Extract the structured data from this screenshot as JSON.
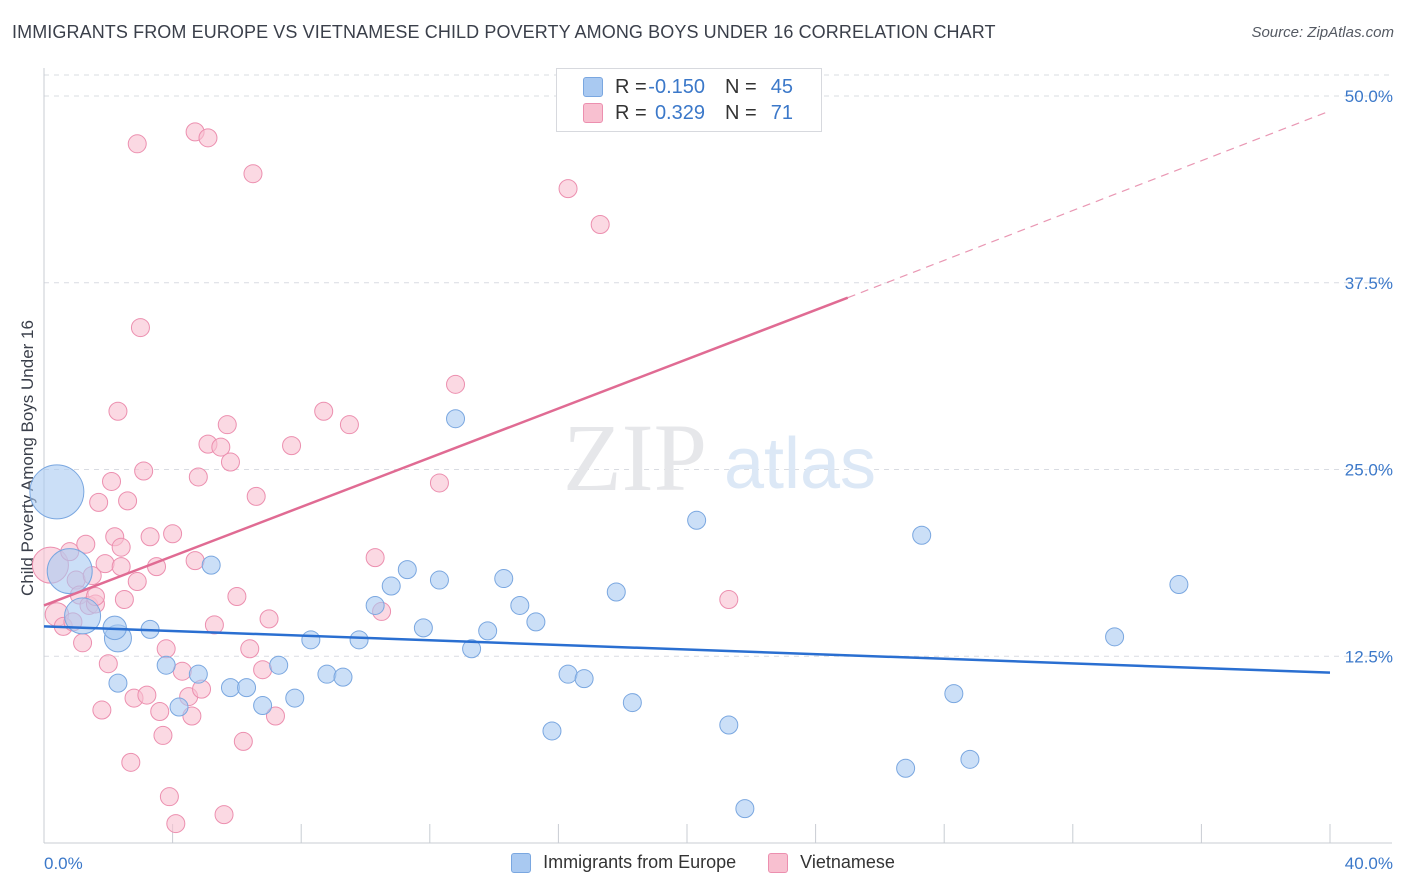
{
  "title": "IMMIGRANTS FROM EUROPE VS VIETNAMESE CHILD POVERTY AMONG BOYS UNDER 16 CORRELATION CHART",
  "source": "Source: ZipAtlas.com",
  "watermark": {
    "zip": "ZIP",
    "atlas": "atlas"
  },
  "legend": {
    "series": [
      {
        "r_label": "R =",
        "r_value": "-0.150",
        "n_label": "N =",
        "n_value": "45",
        "color": "#a9c9f1",
        "border": "#7aa7e0"
      },
      {
        "r_label": "R =",
        "r_value": "0.329",
        "n_label": "N =",
        "n_value": "71",
        "color": "#f8c0d0",
        "border": "#ec8faf"
      }
    ],
    "bottom": [
      "Immigrants from Europe",
      "Vietnamese"
    ]
  },
  "colors": {
    "blue_fill": "#a9c9f1",
    "blue_stroke": "#7aa7e0",
    "blue_line": "#2a6fd1",
    "pink_fill": "#f8c0d0",
    "pink_stroke": "#ec8faf",
    "pink_line": "#e06b93",
    "tick_label": "#3b78c9",
    "grid": "#d9dce2"
  },
  "chart_data": {
    "type": "scatter",
    "title": "IMMIGRANTS FROM EUROPE VS VIETNAMESE CHILD POVERTY AMONG BOYS UNDER 16 CORRELATION CHART",
    "xlabel": "",
    "ylabel": "Child Poverty Among Boys Under 16",
    "xlim": [
      0,
      40
    ],
    "ylim": [
      0,
      50
    ],
    "x_tick_labels": [
      "0.0%",
      "40.0%"
    ],
    "y_ticks": [
      12.5,
      25.0,
      37.5,
      50.0
    ],
    "y_tick_labels": [
      "12.5%",
      "25.0%",
      "37.5%",
      "50.0%"
    ],
    "grid": true,
    "legend_position": "top-center",
    "series": [
      {
        "name": "Immigrants from Europe",
        "trend": {
          "x0": 0,
          "y0": 14.5,
          "x1": 40,
          "y1": 11.4,
          "r": -0.15
        },
        "points": [
          [
            0.4,
            23.5,
            3
          ],
          [
            0.8,
            18.2,
            2.5
          ],
          [
            1.2,
            15.2,
            2
          ],
          [
            2.3,
            13.7,
            1.5
          ],
          [
            2.3,
            10.7,
            1
          ],
          [
            2.2,
            14.4,
            1.3
          ],
          [
            3.3,
            14.3,
            1
          ],
          [
            3.8,
            11.9,
            1
          ],
          [
            4.2,
            9.1,
            1
          ],
          [
            4.8,
            11.3,
            1
          ],
          [
            5.2,
            18.6,
            1
          ],
          [
            5.8,
            10.4,
            1
          ],
          [
            6.3,
            10.4,
            1
          ],
          [
            6.8,
            9.2,
            1
          ],
          [
            7.3,
            11.9,
            1
          ],
          [
            7.8,
            9.7,
            1
          ],
          [
            8.3,
            13.6,
            1
          ],
          [
            8.8,
            11.3,
            1
          ],
          [
            9.3,
            11.1,
            1
          ],
          [
            9.8,
            13.6,
            1
          ],
          [
            10.3,
            15.9,
            1
          ],
          [
            10.8,
            17.2,
            1
          ],
          [
            11.3,
            18.3,
            1
          ],
          [
            11.8,
            14.4,
            1
          ],
          [
            12.3,
            17.6,
            1
          ],
          [
            12.8,
            28.4,
            1
          ],
          [
            13.3,
            13,
            1
          ],
          [
            13.8,
            14.2,
            1
          ],
          [
            14.3,
            17.7,
            1
          ],
          [
            14.8,
            15.9,
            1
          ],
          [
            15.3,
            14.8,
            1
          ],
          [
            15.8,
            7.5,
            1
          ],
          [
            16.3,
            11.3,
            1
          ],
          [
            16.8,
            11,
            1
          ],
          [
            17.8,
            16.8,
            1
          ],
          [
            18.3,
            9.4,
            1
          ],
          [
            20.3,
            21.6,
            1
          ],
          [
            21.3,
            7.9,
            1
          ],
          [
            21.8,
            2.3,
            1
          ],
          [
            26.8,
            5,
            1
          ],
          [
            27.3,
            20.6,
            1
          ],
          [
            28.3,
            10,
            1
          ],
          [
            28.8,
            5.6,
            1
          ],
          [
            33.3,
            13.8,
            1
          ],
          [
            35.3,
            17.3,
            1
          ]
        ]
      },
      {
        "name": "Vietnamese",
        "trend": {
          "x0": 0,
          "y0": 15.9,
          "x1": 25,
          "y1": 36.5,
          "dashed_to": {
            "x": 40,
            "y": 49.0
          },
          "r": 0.329
        },
        "points": [
          [
            0.2,
            18.6,
            2
          ],
          [
            0.4,
            15.3,
            1.3
          ],
          [
            0.6,
            14.5,
            1
          ],
          [
            0.8,
            19.5,
            1
          ],
          [
            1,
            17.6,
            1
          ],
          [
            1.1,
            16.6,
            1
          ],
          [
            1.2,
            13.4,
            1
          ],
          [
            1.3,
            20,
            1
          ],
          [
            1.4,
            15.9,
            1
          ],
          [
            1.5,
            17.9,
            1
          ],
          [
            1.6,
            16,
            1
          ],
          [
            1.7,
            22.8,
            1
          ],
          [
            1.8,
            8.9,
            1
          ],
          [
            1.9,
            18.7,
            1
          ],
          [
            2,
            12,
            1
          ],
          [
            2.1,
            24.2,
            1
          ],
          [
            2.2,
            20.5,
            1
          ],
          [
            2.3,
            28.9,
            1
          ],
          [
            2.4,
            18.5,
            1
          ],
          [
            2.5,
            16.3,
            1
          ],
          [
            2.6,
            22.9,
            1
          ],
          [
            2.7,
            5.4,
            1
          ],
          [
            2.8,
            9.7,
            1
          ],
          [
            2.9,
            17.5,
            1
          ],
          [
            3,
            34.5,
            1
          ],
          [
            3.1,
            24.9,
            1
          ],
          [
            3.2,
            9.9,
            1
          ],
          [
            3.3,
            20.5,
            1
          ],
          [
            3.5,
            18.5,
            1
          ],
          [
            3.6,
            8.8,
            1
          ],
          [
            3.8,
            13,
            1
          ],
          [
            3.9,
            3.1,
            1
          ],
          [
            4,
            20.7,
            1
          ],
          [
            4.1,
            1.3,
            1
          ],
          [
            4.3,
            11.5,
            1
          ],
          [
            4.5,
            9.8,
            1
          ],
          [
            4.6,
            8.5,
            1
          ],
          [
            4.7,
            18.9,
            1
          ],
          [
            4.8,
            24.5,
            1
          ],
          [
            4.9,
            10.3,
            1
          ],
          [
            5.1,
            26.7,
            1
          ],
          [
            5.3,
            14.6,
            1
          ],
          [
            5.5,
            26.5,
            1
          ],
          [
            5.7,
            28,
            1
          ],
          [
            5.8,
            25.5,
            1
          ],
          [
            6,
            16.5,
            1
          ],
          [
            6.2,
            6.8,
            1
          ],
          [
            6.4,
            13,
            1
          ],
          [
            6.6,
            23.2,
            1
          ],
          [
            6.8,
            11.6,
            1
          ],
          [
            7,
            15,
            1
          ],
          [
            7.2,
            8.5,
            1
          ],
          [
            7.7,
            26.6,
            1
          ],
          [
            8.7,
            28.9,
            1
          ],
          [
            9.5,
            28,
            1
          ],
          [
            10.3,
            19.1,
            1
          ],
          [
            10.5,
            15.5,
            1
          ],
          [
            12.3,
            24.1,
            1
          ],
          [
            12.8,
            30.7,
            1
          ],
          [
            16.3,
            43.8,
            1
          ],
          [
            17.3,
            41.4,
            1
          ],
          [
            21.3,
            16.3,
            1
          ],
          [
            2.9,
            46.8,
            1
          ],
          [
            4.7,
            47.6,
            1
          ],
          [
            5.1,
            47.2,
            1
          ],
          [
            6.5,
            44.8,
            1
          ],
          [
            3.7,
            7.2,
            1
          ],
          [
            5.6,
            1.9,
            1
          ],
          [
            0.9,
            14.8,
            1
          ],
          [
            1.6,
            16.5,
            1
          ],
          [
            2.4,
            19.8,
            1
          ]
        ]
      }
    ]
  }
}
